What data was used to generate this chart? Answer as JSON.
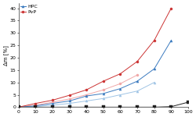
{
  "x": [
    0,
    10,
    20,
    30,
    40,
    50,
    60,
    70,
    80,
    90
  ],
  "hpc_upper": [
    0,
    0.5,
    1.5,
    2.5,
    4.5,
    5.5,
    7.5,
    10.5,
    15.5,
    27.0
  ],
  "hpc_lower": [
    0,
    0.2,
    0.8,
    1.5,
    2.5,
    3.5,
    5.0,
    6.5,
    10.0,
    null
  ],
  "pvp_upper": [
    0,
    1.5,
    2.8,
    4.8,
    7.0,
    10.5,
    13.5,
    18.5,
    27.0,
    40.0
  ],
  "pvp_lower": [
    0,
    0.8,
    2.0,
    3.3,
    5.0,
    7.0,
    9.5,
    13.0,
    null,
    null
  ],
  "x_black": [
    0,
    10,
    20,
    30,
    40,
    50,
    60,
    70,
    80,
    90,
    100
  ],
  "black_line": [
    0,
    0,
    0,
    0,
    0,
    0,
    0,
    0,
    0,
    0.2,
    2.0
  ],
  "hpc_color_dark": "#3a7abf",
  "hpc_color_light": "#9fc4e5",
  "pvp_color_dark": "#cc3333",
  "pvp_color_light": "#f0a8a8",
  "black_color": "#222222",
  "ylabel": "Δm [%]",
  "ylim": [
    0,
    42
  ],
  "xlim": [
    0,
    100
  ],
  "yticks": [
    0,
    5,
    10,
    15,
    20,
    25,
    30,
    35,
    40
  ],
  "xticks": [
    0,
    10,
    20,
    30,
    40,
    50,
    60,
    70,
    80,
    90,
    100
  ],
  "xticklabels": [
    "0",
    "10",
    "20",
    "30",
    "40",
    "50",
    "60",
    "70",
    "80",
    "90",
    "100"
  ],
  "legend_hpc": "HPC",
  "legend_pvp": "PvP",
  "figsize": [
    2.5,
    1.5
  ],
  "dpi": 100
}
